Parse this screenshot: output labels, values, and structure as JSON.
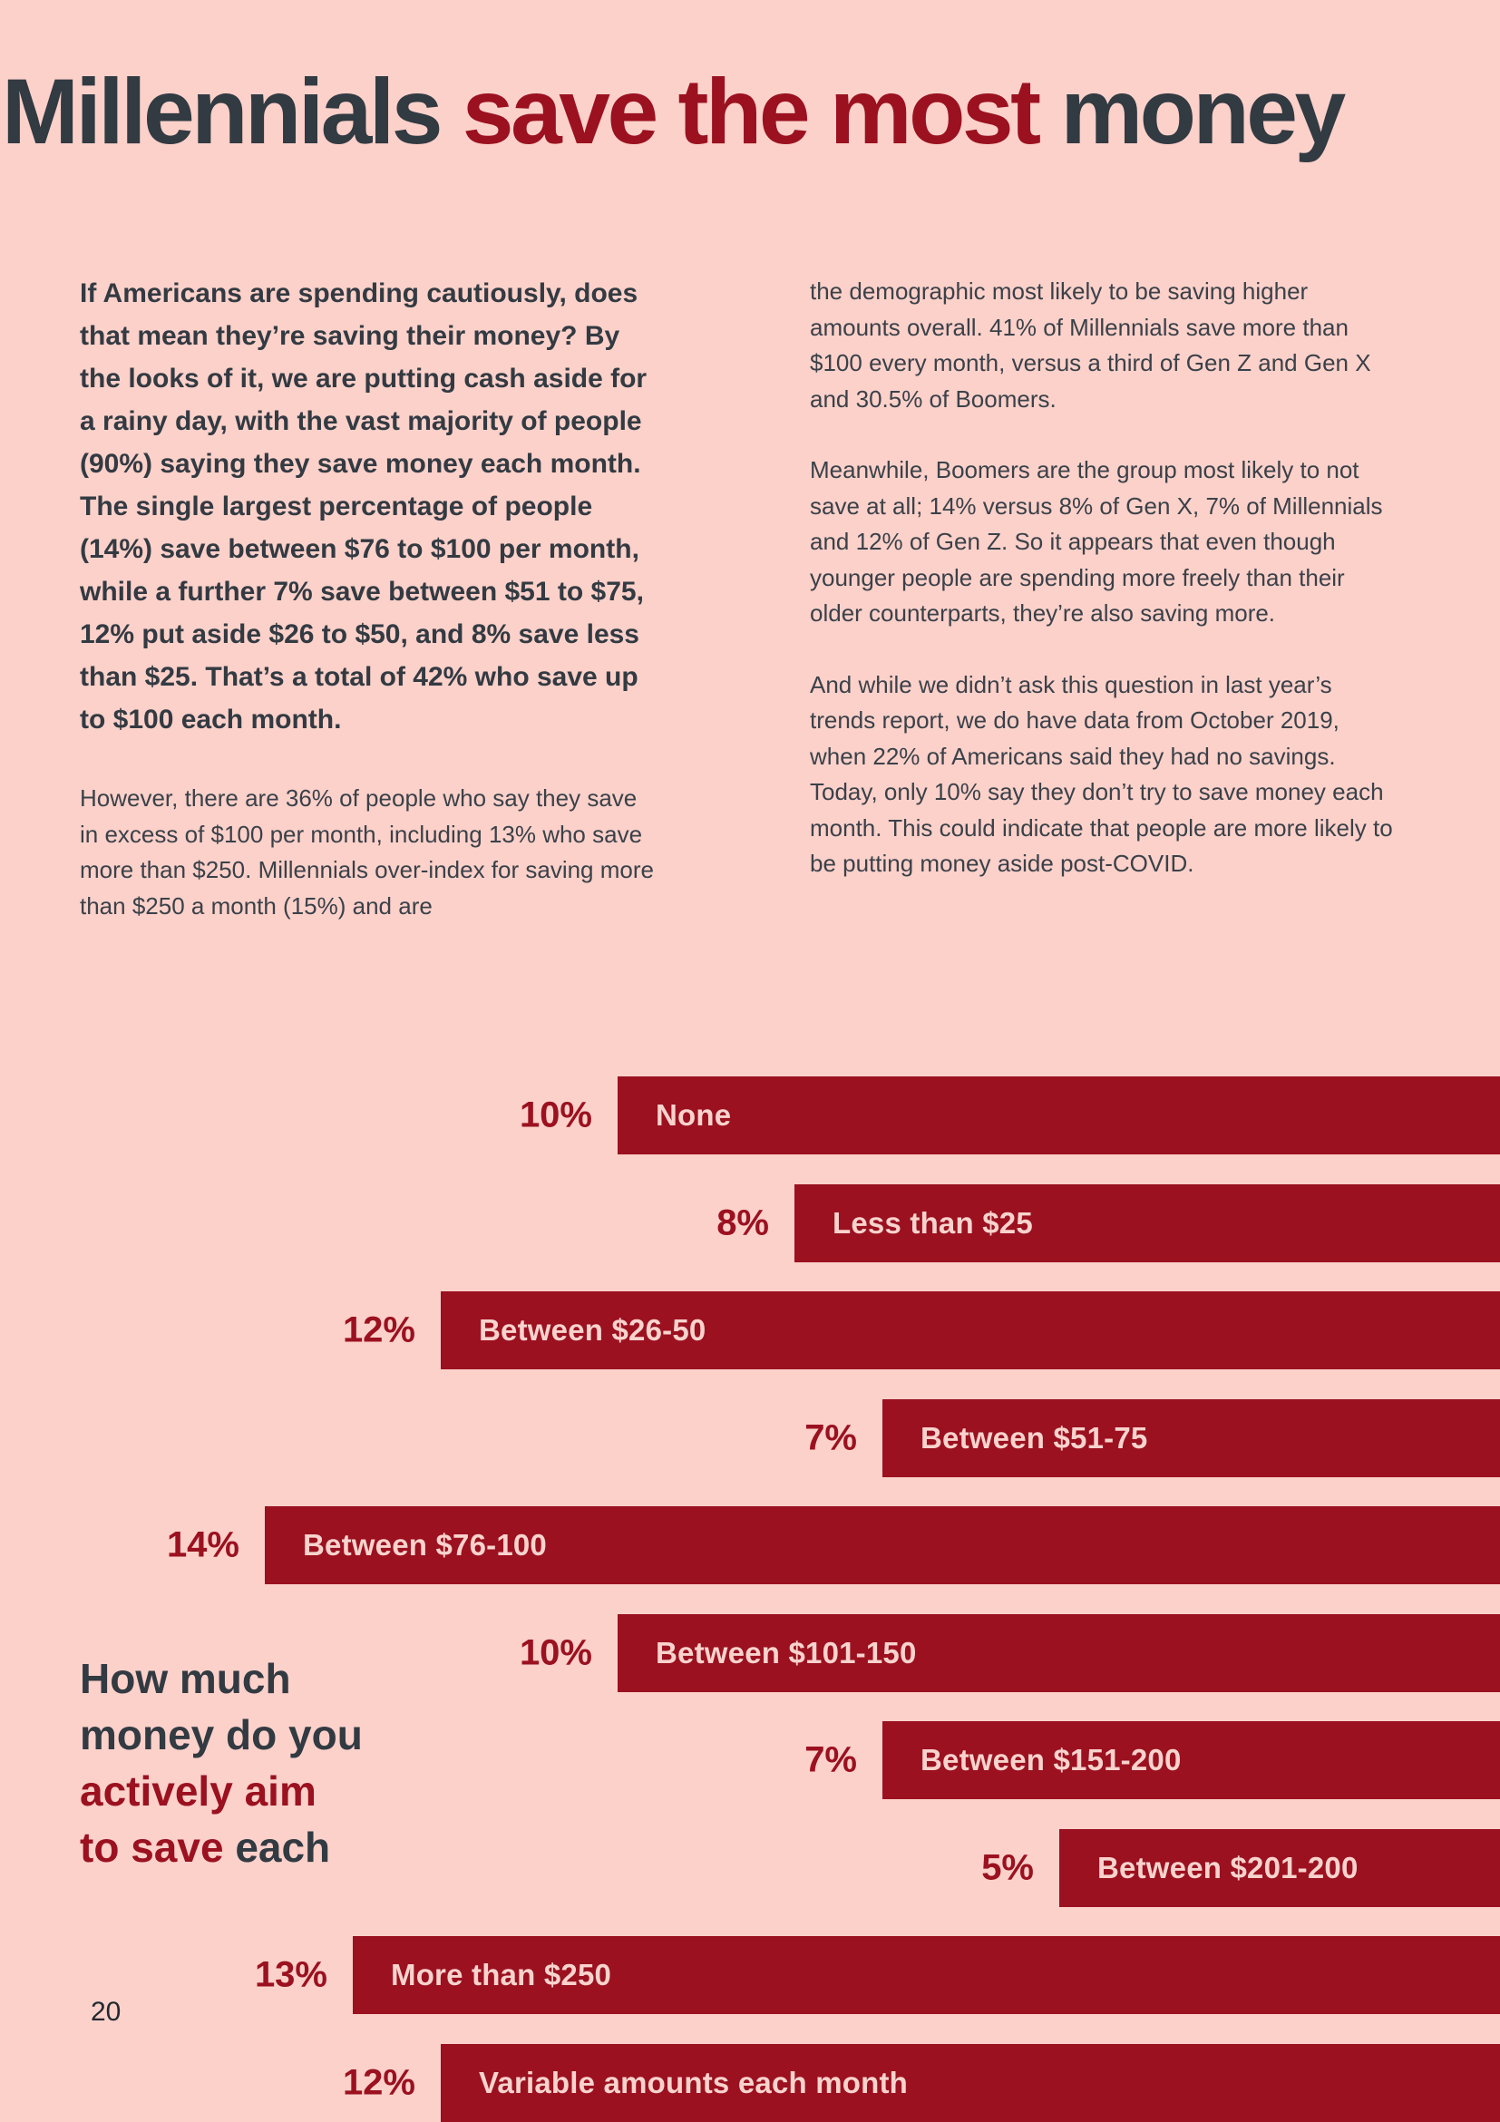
{
  "page": {
    "background_color": "#fbd1ca",
    "accent_red": "#9b1120",
    "text_dark": "#323a42",
    "page_number": "20"
  },
  "title": {
    "part1_dark": "Millennials",
    "part2_red": " save the most ",
    "part3_dark": "money"
  },
  "article": {
    "left_column": {
      "lead_paragraph": "If Americans are spending cautiously, does that mean they’re saving their money? By the looks of it, we are putting cash aside for a rainy day, with the vast majority of people (90%) saying they save money each month. The single largest percentage of people (14%) save between $76 to $100 per month, while a further 7% save between $51 to $75, 12% put aside $26 to $50, and 8% save less than $25. That’s a total of 42% who save up to $100 each month.",
      "paragraph2": "However, there are 36% of people who say they save in excess of $100 per month, including 13% who save more than $250. Millennials over-index for saving more than $250 a month (15%) and are"
    },
    "right_column": {
      "paragraph1": "the demographic most likely to be saving higher amounts overall. 41% of Millennials save more than $100 every month, versus a third of Gen Z and Gen X and 30.5% of Boomers.",
      "paragraph2": "Meanwhile, Boomers are the group most likely to not save at all; 14% versus 8% of Gen X, 7% of Millennials and 12% of Gen Z. So it appears that even though younger people are spending more freely than their older counterparts, they’re also saving more.",
      "paragraph3": "And while we didn’t ask this question in last year’s trends report, we do have data from October 2019, when 22% of Americans said they had no savings. Today, only 10% say they don’t try to save money each month. This could indicate that people are more likely to be putting money aside post-COVID."
    }
  },
  "chart_question": {
    "line1_dark": "How much",
    "line2_dark": "money do you",
    "line3_red": "actively aim",
    "line4_red": "to save ",
    "line4_dark": "each"
  },
  "chart_data": {
    "type": "bar",
    "orientation": "horizontal",
    "title": "How much money do you actively aim to save each",
    "unit": "%",
    "categories": [
      "None",
      "Less than $25",
      "Between $26-50",
      "Between $51-75",
      "Between $76-100",
      "Between $101-150",
      "Between $151-200",
      "Between $201-200",
      "More than $250",
      "Variable amounts each month"
    ],
    "values": [
      10,
      8,
      12,
      7,
      14,
      10,
      7,
      5,
      13,
      12
    ],
    "value_labels": [
      "10%",
      "8%",
      "12%",
      "7%",
      "14%",
      "10%",
      "7%",
      "5%",
      "13%",
      "12%"
    ],
    "bar_color": "#9b1120",
    "bar_label_color": "#f8d3cd",
    "value_label_color": "#9b1120",
    "bars_right_anchored": true,
    "value_labels_position": "left of bar start",
    "xlim": [
      0,
      14
    ],
    "grid": false,
    "legend": false
  }
}
